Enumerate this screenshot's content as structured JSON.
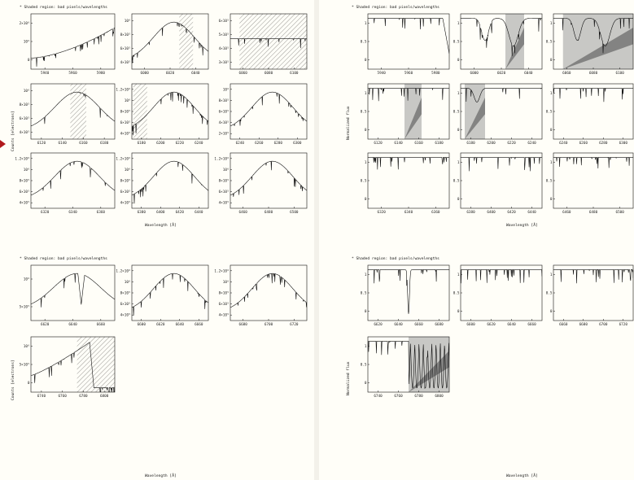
{
  "left_page": {
    "notes": [
      "* Shaded region: bad pixels/wavelengths",
      "* Shaded region: bad pixels/wavelengths"
    ],
    "ylabels": [
      "Counts [electrons]",
      "Counts [electrons]"
    ],
    "xlabels": [
      "Wavelength [Å]",
      "Wavelength [Å]"
    ]
  },
  "right_page": {
    "notes": [
      "* Shaded region: bad pixels/wavelengths",
      "* Shaded region: bad pixels/wavelengths"
    ],
    "ylabels": [
      "Normalized flux",
      "Normalized flux"
    ],
    "xlabels": [
      "Wavelength [Å]",
      "Wavelength [Å]"
    ]
  },
  "colors": {
    "marker": "#b1191d",
    "line": "#111111",
    "shade_gray": "#9a9a9a"
  },
  "chart_data": [
    {
      "id": "L1",
      "type": "line",
      "xticks": [
        "5940",
        "5960",
        "5980"
      ],
      "yticks": [
        "0",
        "10⁶",
        "2×10⁶"
      ],
      "mode": "counts",
      "shape": "rising",
      "bad_regions": []
    },
    {
      "id": "L2",
      "type": "line",
      "xticks": [
        "6000",
        "6020",
        "6040"
      ],
      "yticks": [
        "4×10⁵",
        "6×10⁵",
        "8×10⁵",
        "10⁶"
      ],
      "mode": "counts",
      "shape": "peak",
      "bad_regions": [
        [
          0.62,
          0.8
        ]
      ]
    },
    {
      "id": "L3",
      "type": "line",
      "xticks": [
        "6060",
        "6080",
        "6100"
      ],
      "yticks": [
        "3×10⁵",
        "4×10⁵",
        "5×10⁵",
        "6×10⁵"
      ],
      "mode": "counts",
      "shape": "flat",
      "bad_regions": [
        [
          0.12,
          1.0
        ]
      ]
    },
    {
      "id": "L4",
      "type": "line",
      "xticks": [
        "6120",
        "6140",
        "6160",
        "6180"
      ],
      "yticks": [
        "4×10⁵",
        "6×10⁵",
        "8×10⁵",
        "10⁶"
      ],
      "mode": "counts",
      "shape": "peak",
      "bad_regions": [
        [
          0.47,
          0.66
        ]
      ]
    },
    {
      "id": "L5",
      "type": "line",
      "xticks": [
        "6180",
        "6200",
        "6220",
        "6240"
      ],
      "yticks": [
        "4×10⁵",
        "6×10⁵",
        "8×10⁵",
        "10⁶",
        "1.2×10⁶"
      ],
      "mode": "counts",
      "shape": "peak",
      "bad_regions": [
        [
          0.02,
          0.2
        ]
      ]
    },
    {
      "id": "L6",
      "type": "line",
      "xticks": [
        "6240",
        "6260",
        "6280",
        "6300"
      ],
      "yticks": [
        "2×10⁵",
        "4×10⁵",
        "6×10⁵",
        "8×10⁵",
        "10⁶"
      ],
      "mode": "counts",
      "shape": "peak",
      "bad_regions": []
    },
    {
      "id": "L7",
      "type": "line",
      "xticks": [
        "6320",
        "6340",
        "6360"
      ],
      "yticks": [
        "4×10⁵",
        "6×10⁵",
        "8×10⁵",
        "10⁶",
        "1.2×10⁶"
      ],
      "mode": "counts",
      "shape": "peak",
      "bad_regions": []
    },
    {
      "id": "L8",
      "type": "line",
      "xticks": [
        "6380",
        "6400",
        "6420",
        "6440"
      ],
      "yticks": [
        "4×10⁵",
        "6×10⁵",
        "8×10⁵",
        "10⁶",
        "1.2×10⁶"
      ],
      "mode": "counts",
      "shape": "peak",
      "bad_regions": []
    },
    {
      "id": "L9",
      "type": "line",
      "xticks": [
        "6460",
        "6480",
        "6500"
      ],
      "yticks": [
        "4×10⁵",
        "6×10⁵",
        "8×10⁵",
        "10⁶",
        "1.2×10⁶"
      ],
      "mode": "counts",
      "shape": "peak",
      "bad_regions": []
    },
    {
      "id": "L10",
      "type": "line",
      "xticks": [
        "6620",
        "6640",
        "6660"
      ],
      "yticks": [
        "5×10⁵",
        "10⁶"
      ],
      "mode": "counts",
      "shape": "peak_dip",
      "bad_regions": []
    },
    {
      "id": "L11",
      "type": "line",
      "xticks": [
        "6600",
        "6620",
        "6640",
        "6660"
      ],
      "yticks": [
        "4×10⁵",
        "6×10⁵",
        "8×10⁵",
        "10⁶",
        "1.2×10⁶"
      ],
      "mode": "counts",
      "shape": "peak",
      "bad_regions": []
    },
    {
      "id": "L12",
      "type": "line",
      "xticks": [
        "6680",
        "6700",
        "6720"
      ],
      "yticks": [
        "4×10⁵",
        "6×10⁵",
        "8×10⁵",
        "10⁶",
        "1.2×10⁶"
      ],
      "mode": "counts",
      "shape": "peak",
      "bad_regions": []
    },
    {
      "id": "L13",
      "type": "line",
      "xticks": [
        "6740",
        "6760",
        "6780",
        "6800"
      ],
      "yticks": [
        "0",
        "5×10⁵",
        "10⁶"
      ],
      "mode": "counts",
      "shape": "rising_drop",
      "bad_regions": [
        [
          0.55,
          1.0
        ]
      ]
    },
    {
      "id": "R1",
      "type": "line",
      "xticks": [
        "5940",
        "5960",
        "5980"
      ],
      "yticks": [
        "0",
        "0.5",
        "1"
      ],
      "mode": "norm",
      "shape": "norm_enddip",
      "bad_regions": []
    },
    {
      "id": "R2",
      "type": "line",
      "xticks": [
        "6000",
        "6020",
        "6040"
      ],
      "yticks": [
        "0",
        "0.5",
        "1"
      ],
      "mode": "norm",
      "shape": "norm_dips",
      "bad_regions": [
        [
          0.55,
          0.78
        ]
      ]
    },
    {
      "id": "R3",
      "type": "line",
      "xticks": [
        "6060",
        "6080",
        "6100"
      ],
      "yticks": [
        "0",
        "0.5",
        "1"
      ],
      "mode": "norm",
      "shape": "norm_dips",
      "bad_regions": [
        [
          0.12,
          1.0
        ]
      ]
    },
    {
      "id": "R4",
      "type": "line",
      "xticks": [
        "6120",
        "6140",
        "6160",
        "6180"
      ],
      "yticks": [
        "0",
        "0.5",
        "1"
      ],
      "mode": "norm",
      "shape": "norm_lines",
      "bad_regions": [
        [
          0.45,
          0.66
        ]
      ]
    },
    {
      "id": "R5",
      "type": "line",
      "xticks": [
        "6180",
        "6200",
        "6220",
        "6240"
      ],
      "yticks": [
        "0",
        "0.5",
        "1"
      ],
      "mode": "norm",
      "shape": "norm_dip",
      "bad_regions": [
        [
          0.05,
          0.3
        ]
      ]
    },
    {
      "id": "R6",
      "type": "line",
      "xticks": [
        "6240",
        "6260",
        "6280",
        "6300"
      ],
      "yticks": [
        "0",
        "0.5",
        "1"
      ],
      "mode": "norm",
      "shape": "norm_lines",
      "bad_regions": []
    },
    {
      "id": "R7",
      "type": "line",
      "xticks": [
        "6320",
        "6340",
        "6360"
      ],
      "yticks": [
        "0",
        "0.5",
        "1"
      ],
      "mode": "norm",
      "shape": "norm_lines",
      "bad_regions": []
    },
    {
      "id": "R8",
      "type": "line",
      "xticks": [
        "6380",
        "6400",
        "6420",
        "6440"
      ],
      "yticks": [
        "0",
        "0.5",
        "1"
      ],
      "mode": "norm",
      "shape": "norm_lines",
      "bad_regions": []
    },
    {
      "id": "R9",
      "type": "line",
      "xticks": [
        "6460",
        "6480",
        "6500"
      ],
      "yticks": [
        "0",
        "0.5",
        "1"
      ],
      "mode": "norm",
      "shape": "norm_lines",
      "bad_regions": []
    },
    {
      "id": "R10",
      "type": "line",
      "xticks": [
        "6620",
        "6640",
        "6660",
        "6680"
      ],
      "yticks": [
        "0",
        "0.5",
        "1"
      ],
      "mode": "norm",
      "shape": "norm_halpha",
      "bad_regions": []
    },
    {
      "id": "R11",
      "type": "line",
      "xticks": [
        "6600",
        "6620",
        "6640",
        "6660"
      ],
      "yticks": [
        "0",
        "0.5",
        "1"
      ],
      "mode": "norm",
      "shape": "norm_lines",
      "bad_regions": []
    },
    {
      "id": "R12",
      "type": "line",
      "xticks": [
        "6660",
        "6680",
        "6700",
        "6720"
      ],
      "yticks": [
        "0",
        "0.5",
        "1"
      ],
      "mode": "norm",
      "shape": "norm_lines",
      "bad_regions": []
    },
    {
      "id": "R13",
      "type": "line",
      "xticks": [
        "6740",
        "6760",
        "6780",
        "6800"
      ],
      "yticks": [
        "0",
        "0.5",
        "1"
      ],
      "mode": "norm",
      "shape": "norm_messy",
      "bad_regions": [
        [
          0.5,
          1.0
        ]
      ]
    }
  ]
}
